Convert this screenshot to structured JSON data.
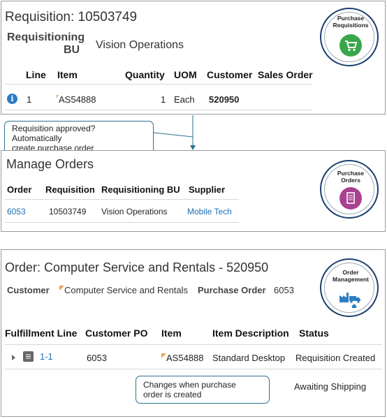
{
  "requisition": {
    "title": "Requisition: 10503749",
    "bu_label_line1": "Requisitioning",
    "bu_label_line2": "BU",
    "bu_value": "Vision Operations",
    "columns": [
      "Line",
      "Item",
      "Quantity",
      "UOM",
      "Customer",
      "Sales Order"
    ],
    "row": {
      "line": "1",
      "item": "AS54888",
      "quantity": "1",
      "uom": "Each",
      "customer": "520950",
      "sales_order": ""
    },
    "badge": {
      "line1": "Purchase",
      "line2": "Requisitions",
      "icon": "cart-icon",
      "color": "#3aa64a"
    }
  },
  "callout_top": {
    "line1": "Requisition approved?  Automatically",
    "line2": "create purchase order"
  },
  "orders": {
    "title": "Manage Orders",
    "columns": [
      "Order",
      "Requisition",
      "Requisitioning BU",
      "Supplier"
    ],
    "row": {
      "order": "6053",
      "requisition": "10503749",
      "bu": "Vision Operations",
      "supplier": "Mobile Tech"
    },
    "badge": {
      "line1": "Purchase",
      "line2": "Orders",
      "icon": "document-icon",
      "color": "#a8418f"
    }
  },
  "order": {
    "title": "Order: Computer Service and Rentals - 520950",
    "customer_label": "Customer",
    "customer_value": "Computer Service and Rentals",
    "po_label": "Purchase Order",
    "po_value": "6053",
    "columns": [
      "Fulfillment Line",
      "Customer PO",
      "Item",
      "Item Description",
      "Status"
    ],
    "row": {
      "line": "1-1",
      "po": "6053",
      "item": "AS54888",
      "description": "Standard Desktop",
      "status": "Requisition Created"
    },
    "badge": {
      "line1": "Order",
      "line2": "Management",
      "icon": "factory-truck-icon",
      "color": "#2b7fc4"
    }
  },
  "callout_bottom": {
    "line1": "Changes when purchase",
    "line2": "order is created",
    "target": "Awaiting Shipping"
  }
}
